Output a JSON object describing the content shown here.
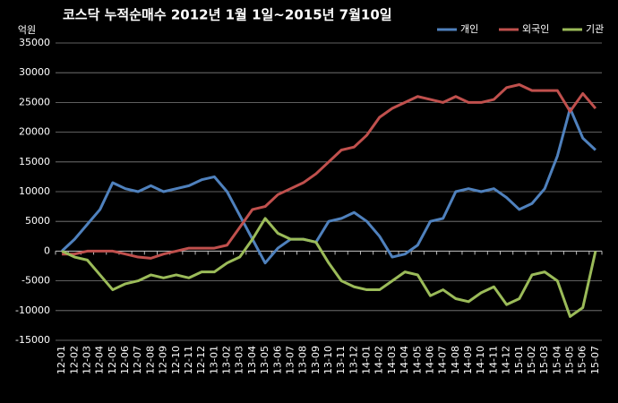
{
  "chart_data": {
    "type": "line",
    "title": "코스닥  누적순매수 2012년 1월 1일~2015년 7월10일",
    "y_label": "억원",
    "categories": [
      "12-01",
      "12-02",
      "12-03",
      "12-04",
      "12-05",
      "12-06",
      "12-07",
      "12-08",
      "12-09",
      "12-10",
      "12-11",
      "12-12",
      "13-01",
      "13-02",
      "13-03",
      "13-04",
      "13-05",
      "13-06",
      "13-07",
      "13-08",
      "13-09",
      "13-10",
      "13-11",
      "13-12",
      "14-01",
      "14-02",
      "14-03",
      "14-04",
      "14-05",
      "14-06",
      "14-07",
      "14-08",
      "14-09",
      "14-10",
      "14-11",
      "14-12",
      "15-01",
      "15-02",
      "15-03",
      "15-04",
      "15-05",
      "15-06",
      "15-07"
    ],
    "series": [
      {
        "name": "개인",
        "color": "#4f81bd",
        "values": [
          0,
          2000,
          4500,
          7000,
          11500,
          10500,
          10000,
          11000,
          10000,
          10500,
          11000,
          12000,
          12500,
          10000,
          6000,
          2000,
          -2000,
          500,
          2000,
          2000,
          1500,
          5000,
          5500,
          6500,
          5000,
          2500,
          -1000,
          -500,
          1000,
          5000,
          5500,
          10000,
          10500,
          10000,
          10500,
          9000,
          7000,
          8000,
          10500,
          16000,
          24000,
          19000,
          17000
        ]
      },
      {
        "name": "외국인",
        "color": "#c0504d",
        "values": [
          -500,
          -500,
          0,
          0,
          0,
          -500,
          -1000,
          -1200,
          -500,
          0,
          500,
          500,
          500,
          1000,
          4000,
          7000,
          7500,
          9500,
          10500,
          11500,
          13000,
          15000,
          17000,
          17500,
          19500,
          22500,
          24000,
          25000,
          26000,
          25500,
          25000,
          26000,
          25000,
          25000,
          25500,
          27500,
          28000,
          27000,
          27000,
          27000,
          23500,
          26500,
          24000
        ]
      },
      {
        "name": "기관",
        "color": "#9bbb59",
        "values": [
          0,
          -1000,
          -1500,
          -4000,
          -6500,
          -5500,
          -5000,
          -4000,
          -4500,
          -4000,
          -4500,
          -3500,
          -3500,
          -2000,
          -1000,
          2000,
          5500,
          3000,
          2000,
          2000,
          1500,
          -2000,
          -5000,
          -6000,
          -6500,
          -6500,
          -5000,
          -3500,
          -4000,
          -7500,
          -6500,
          -8000,
          -8500,
          -7000,
          -6000,
          -9000,
          -8000,
          -4000,
          -3500,
          -5000,
          -11000,
          -9500,
          0
        ]
      }
    ],
    "ylim": [
      -15000,
      35000
    ],
    "yticks": [
      -15000,
      -10000,
      -5000,
      0,
      5000,
      10000,
      15000,
      20000,
      25000,
      30000,
      35000
    ],
    "grid": true,
    "legend": "top-right"
  }
}
